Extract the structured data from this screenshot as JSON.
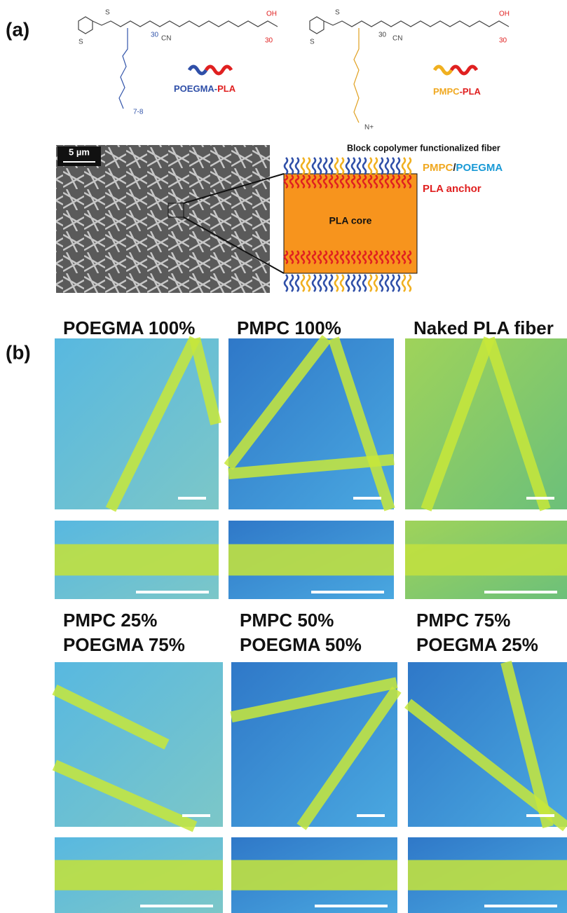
{
  "panel_a": {
    "label": "(a)",
    "polymers": [
      {
        "parts": [
          "POEGMA",
          "-",
          "PLA"
        ],
        "structure_labels": [
          "S",
          "S",
          "30",
          "CN",
          "OH",
          "30",
          "7-8"
        ]
      },
      {
        "parts": [
          "PMPC",
          "-",
          "PLA"
        ],
        "structure_labels": [
          "S",
          "S",
          "30",
          "CN",
          "OH",
          "30",
          "N+"
        ]
      }
    ],
    "sem_scale": "5 µm",
    "schematic": {
      "title": "Block copolymer functionalized fiber",
      "shell": [
        "PMPC",
        "/",
        "POEGMA"
      ],
      "anchor": "PLA anchor",
      "core": "PLA core"
    }
  },
  "panel_b": {
    "label": "(b)",
    "images": [
      {
        "title": [
          "POEGMA 100%"
        ]
      },
      {
        "title": [
          "PMPC 100%"
        ]
      },
      {
        "title": [
          "Naked PLA fiber"
        ]
      },
      {
        "title": [
          "PMPC 25%",
          "POEGMA 75%"
        ]
      },
      {
        "title": [
          "PMPC 50%",
          "POEGMA 50%"
        ]
      },
      {
        "title": [
          "PMPC 75%",
          "POEGMA 25%"
        ]
      }
    ]
  }
}
